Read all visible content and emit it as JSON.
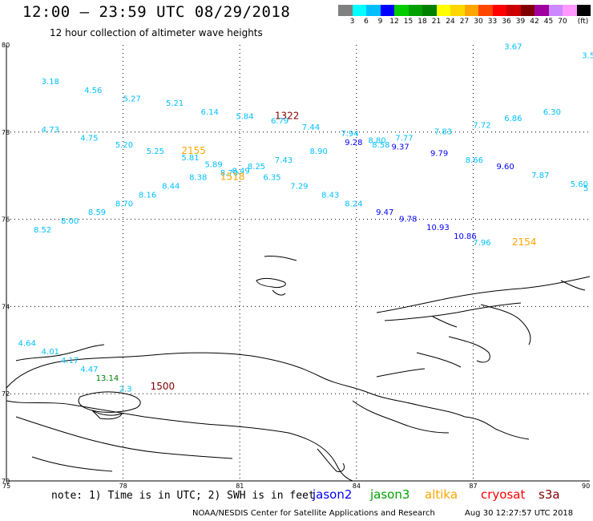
{
  "title": "12:00 — 23:59 UTC 08/29/2018",
  "subtitle": "12 hour collection of altimeter wave heights",
  "colorbar": {
    "unit": "(ft)",
    "labels": [
      "3",
      "6",
      "9",
      "12",
      "15",
      "18",
      "21",
      "24",
      "27",
      "30",
      "33",
      "36",
      "39",
      "42",
      "45",
      "70"
    ],
    "colors": [
      "#808080",
      "#00ffff",
      "#00bfff",
      "#0000ff",
      "#00cc00",
      "#00a000",
      "#008000",
      "#ffff00",
      "#ffd700",
      "#ffa500",
      "#ff4500",
      "#ff0000",
      "#cc0000",
      "#800000",
      "#a000a0",
      "#cc88ff",
      "#ff99ff",
      "#000000"
    ]
  },
  "axes": {
    "y_ticks": [
      "80",
      "78",
      "76",
      "74",
      "72",
      "70"
    ],
    "x_ticks": [
      "75",
      "78",
      "81",
      "84",
      "87",
      "90"
    ]
  },
  "labels": [
    {
      "text": "3.67",
      "lon": 87.8,
      "lat": 79.9,
      "color": "#00bfff"
    },
    {
      "text": "3.5",
      "lon": 89.8,
      "lat": 79.7,
      "color": "#00bfff"
    },
    {
      "text": "3.18",
      "lon": 75.9,
      "lat": 79.1,
      "color": "#00bfff"
    },
    {
      "text": "4.56",
      "lon": 77.0,
      "lat": 78.9,
      "color": "#00bfff"
    },
    {
      "text": "5.27",
      "lon": 78.0,
      "lat": 78.7,
      "color": "#00bfff"
    },
    {
      "text": "5.21",
      "lon": 79.1,
      "lat": 78.6,
      "color": "#00bfff"
    },
    {
      "text": "6.14",
      "lon": 80.0,
      "lat": 78.4,
      "color": "#00bfff"
    },
    {
      "text": "5.84",
      "lon": 80.9,
      "lat": 78.3,
      "color": "#00bfff"
    },
    {
      "text": "1322",
      "lon": 81.9,
      "lat": 78.3,
      "color": "#800000"
    },
    {
      "text": "6.79",
      "lon": 81.8,
      "lat": 78.2,
      "color": "#00bfff"
    },
    {
      "text": "7.44",
      "lon": 82.6,
      "lat": 78.05,
      "color": "#00bfff"
    },
    {
      "text": "7.94",
      "lon": 83.6,
      "lat": 77.9,
      "color": "#00bfff"
    },
    {
      "text": "8.80",
      "lon": 84.3,
      "lat": 77.75,
      "color": "#00bfff"
    },
    {
      "text": "7.77",
      "lon": 85.0,
      "lat": 77.8,
      "color": "#00bfff"
    },
    {
      "text": "7.83",
      "lon": 86.0,
      "lat": 77.95,
      "color": "#00bfff"
    },
    {
      "text": "7.72",
      "lon": 87.0,
      "lat": 78.1,
      "color": "#00bfff"
    },
    {
      "text": "6.86",
      "lon": 87.8,
      "lat": 78.25,
      "color": "#00bfff"
    },
    {
      "text": "6.30",
      "lon": 88.8,
      "lat": 78.4,
      "color": "#00bfff"
    },
    {
      "text": "4.73",
      "lon": 75.9,
      "lat": 78.0,
      "color": "#00bfff"
    },
    {
      "text": "4.75",
      "lon": 76.9,
      "lat": 77.8,
      "color": "#00bfff"
    },
    {
      "text": "5.20",
      "lon": 77.8,
      "lat": 77.65,
      "color": "#00bfff"
    },
    {
      "text": "5.25",
      "lon": 78.6,
      "lat": 77.5,
      "color": "#00bfff"
    },
    {
      "text": "2155",
      "lon": 79.5,
      "lat": 77.5,
      "color": "#ffa500"
    },
    {
      "text": "5.81",
      "lon": 79.5,
      "lat": 77.35,
      "color": "#00bfff"
    },
    {
      "text": "8.58",
      "lon": 84.4,
      "lat": 77.65,
      "color": "#00bfff"
    },
    {
      "text": "9.28",
      "lon": 83.7,
      "lat": 77.7,
      "color": "#0000ff"
    },
    {
      "text": "9.37",
      "lon": 84.9,
      "lat": 77.6,
      "color": "#0000ff"
    },
    {
      "text": "9.79",
      "lon": 85.9,
      "lat": 77.45,
      "color": "#0000ff"
    },
    {
      "text": "8.66",
      "lon": 86.8,
      "lat": 77.3,
      "color": "#00bfff"
    },
    {
      "text": "9.60",
      "lon": 87.6,
      "lat": 77.15,
      "color": "#0000ff"
    },
    {
      "text": "7.87",
      "lon": 88.5,
      "lat": 76.95,
      "color": "#00bfff"
    },
    {
      "text": "5.60",
      "lon": 89.5,
      "lat": 76.75,
      "color": "#00bfff"
    },
    {
      "text": "5",
      "lon": 90.1,
      "lat": 76.65,
      "color": "#00bfff"
    },
    {
      "text": "8.90",
      "lon": 82.8,
      "lat": 77.5,
      "color": "#00bfff"
    },
    {
      "text": "7.43",
      "lon": 81.9,
      "lat": 77.3,
      "color": "#00bfff"
    },
    {
      "text": "5.89",
      "lon": 80.1,
      "lat": 77.2,
      "color": "#00bfff"
    },
    {
      "text": "8.25",
      "lon": 81.2,
      "lat": 77.15,
      "color": "#00bfff"
    },
    {
      "text": "8.49",
      "lon": 80.8,
      "lat": 77.05,
      "color": "#00bfff"
    },
    {
      "text": "8.70",
      "lon": 80.5,
      "lat": 77.0,
      "color": "#00bfff"
    },
    {
      "text": "8.38",
      "lon": 79.7,
      "lat": 76.9,
      "color": "#00bfff"
    },
    {
      "text": "1518",
      "lon": 80.5,
      "lat": 76.9,
      "color": "#ffa500"
    },
    {
      "text": "6.35",
      "lon": 81.6,
      "lat": 76.9,
      "color": "#00bfff"
    },
    {
      "text": "8.44",
      "lon": 79.0,
      "lat": 76.7,
      "color": "#00bfff"
    },
    {
      "text": "7.29",
      "lon": 82.3,
      "lat": 76.7,
      "color": "#00bfff"
    },
    {
      "text": "8.16",
      "lon": 78.4,
      "lat": 76.5,
      "color": "#00bfff"
    },
    {
      "text": "8.43",
      "lon": 83.1,
      "lat": 76.5,
      "color": "#00bfff"
    },
    {
      "text": "8.70",
      "lon": 77.8,
      "lat": 76.3,
      "color": "#00bfff"
    },
    {
      "text": "8.24",
      "lon": 83.7,
      "lat": 76.3,
      "color": "#00bfff"
    },
    {
      "text": "8.59",
      "lon": 77.1,
      "lat": 76.1,
      "color": "#00bfff"
    },
    {
      "text": "9.47",
      "lon": 84.5,
      "lat": 76.1,
      "color": "#0000ff"
    },
    {
      "text": "8.00",
      "lon": 76.4,
      "lat": 75.9,
      "color": "#00bfff"
    },
    {
      "text": "9.78",
      "lon": 85.1,
      "lat": 75.95,
      "color": "#0000ff"
    },
    {
      "text": "8.52",
      "lon": 75.7,
      "lat": 75.7,
      "color": "#00bfff"
    },
    {
      "text": "10.93",
      "lon": 85.8,
      "lat": 75.75,
      "color": "#0000ff"
    },
    {
      "text": "10.86",
      "lon": 86.5,
      "lat": 75.55,
      "color": "#0000ff"
    },
    {
      "text": "7.96",
      "lon": 87.0,
      "lat": 75.4,
      "color": "#00bfff"
    },
    {
      "text": "2154",
      "lon": 88.0,
      "lat": 75.4,
      "color": "#ffa500"
    },
    {
      "text": "4.64",
      "lon": 75.3,
      "lat": 73.1,
      "color": "#00bfff"
    },
    {
      "text": "4.01",
      "lon": 75.9,
      "lat": 72.9,
      "color": "#00bfff"
    },
    {
      "text": "4.17",
      "lon": 76.4,
      "lat": 72.7,
      "color": "#00bfff"
    },
    {
      "text": "4.47",
      "lon": 76.9,
      "lat": 72.5,
      "color": "#00bfff"
    },
    {
      "text": "13.14",
      "lon": 77.3,
      "lat": 72.3,
      "color": "#008000"
    },
    {
      "text": "1500",
      "lon": 78.7,
      "lat": 72.1,
      "color": "#800000"
    },
    {
      "text": "2.3",
      "lon": 77.9,
      "lat": 72.05,
      "color": "#00bfff"
    }
  ],
  "note": "note: 1) Time is in UTC; 2) SWH is in feet",
  "satellites": [
    {
      "name": "jason2",
      "color": "#0000ff"
    },
    {
      "name": "jason3",
      "color": "#00a000"
    },
    {
      "name": "altika",
      "color": "#ffa500"
    },
    {
      "name": "cryosat",
      "color": "#ff0000"
    },
    {
      "name": "s3a",
      "color": "#800000"
    }
  ],
  "credit": "NOAA/NESDIS Center for Satellite Applications and Research",
  "timestamp": "Aug 30 12:27:57 UTC 2018"
}
